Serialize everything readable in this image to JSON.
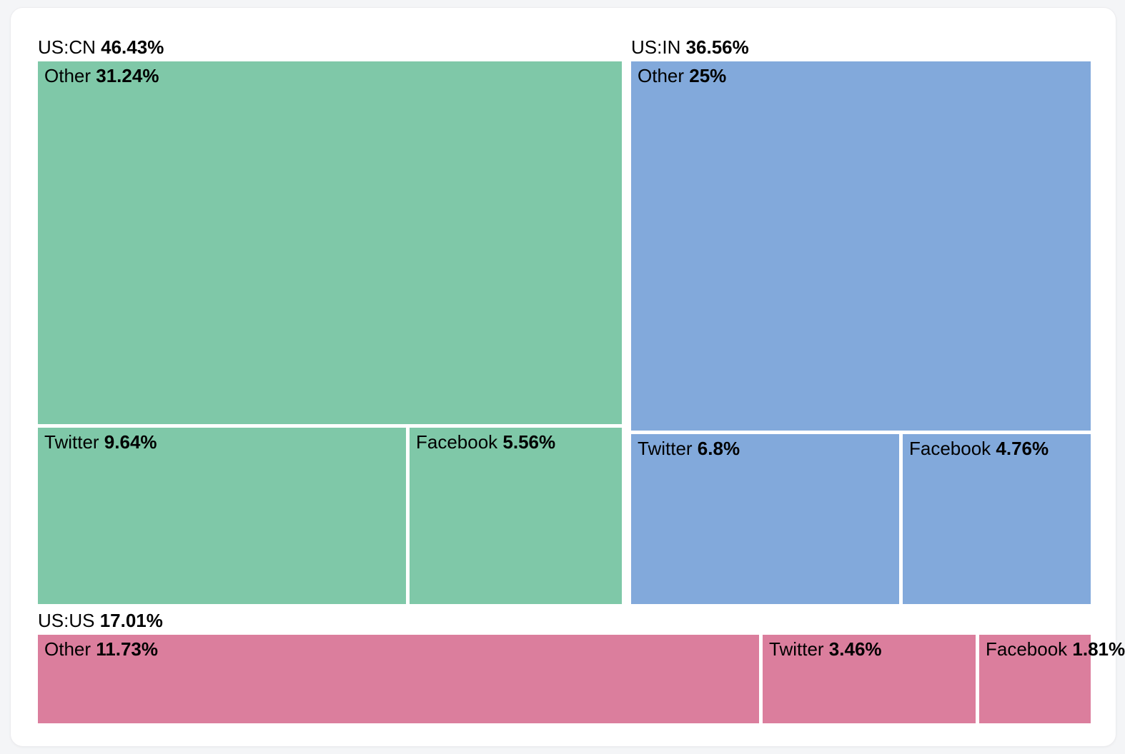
{
  "page": {
    "background_color": "#f4f5f7",
    "card_background_color": "#ffffff"
  },
  "chart_data": {
    "type": "treemap",
    "title": "",
    "legend": "none",
    "value_suffix": "%",
    "text_color": "#000000",
    "groups": [
      {
        "label": "US:CN",
        "total": 46.43,
        "color": "#7fc8a8",
        "layout": "other-top",
        "children": [
          {
            "label": "Other",
            "value": 31.24
          },
          {
            "label": "Twitter",
            "value": 9.64
          },
          {
            "label": "Facebook",
            "value": 5.56
          }
        ]
      },
      {
        "label": "US:IN",
        "total": 36.56,
        "color": "#82a9db",
        "layout": "other-top",
        "children": [
          {
            "label": "Other",
            "value": 25
          },
          {
            "label": "Twitter",
            "value": 6.8
          },
          {
            "label": "Facebook",
            "value": 4.76
          }
        ]
      },
      {
        "label": "US:US",
        "total": 17.01,
        "color": "#db7e9d",
        "layout": "single-row",
        "children": [
          {
            "label": "Other",
            "value": 11.73
          },
          {
            "label": "Twitter",
            "value": 3.46
          },
          {
            "label": "Facebook",
            "value": 1.81
          }
        ]
      }
    ]
  }
}
